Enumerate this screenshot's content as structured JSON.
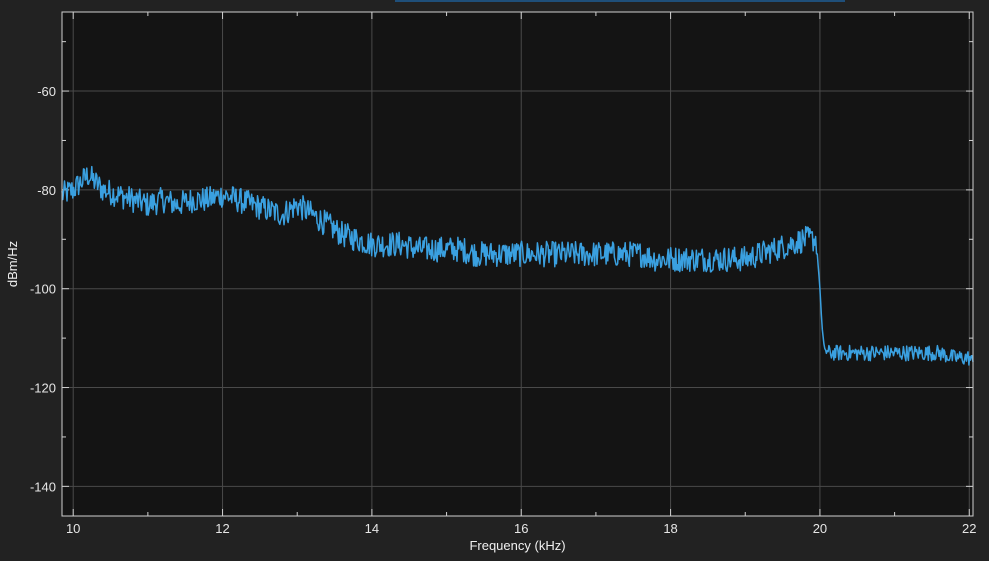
{
  "chart_data": {
    "type": "line",
    "xlabel": "Frequency (kHz)",
    "ylabel": "dBm/Hz",
    "xlim": [
      9.85,
      22.05
    ],
    "ylim": [
      -146,
      -44
    ],
    "x_ticks": [
      10,
      12,
      14,
      16,
      18,
      20,
      22
    ],
    "x_minor_ticks": [
      11,
      13,
      15,
      17,
      19,
      21
    ],
    "y_ticks": [
      -60,
      -80,
      -100,
      -120,
      -140
    ],
    "y_minor_ticks": [
      -50,
      -70,
      -90,
      -110,
      -130
    ],
    "grid": true,
    "series": [
      {
        "color": "#3aa0e0",
        "x": [
          9.85,
          10.0,
          10.2,
          10.4,
          10.6,
          10.8,
          11.0,
          11.2,
          11.4,
          11.6,
          11.8,
          12.0,
          12.2,
          12.4,
          12.6,
          12.8,
          13.0,
          13.2,
          13.4,
          13.6,
          13.8,
          14.0,
          14.2,
          14.4,
          14.6,
          14.8,
          15.0,
          15.2,
          15.4,
          15.6,
          15.8,
          16.0,
          16.2,
          16.4,
          16.6,
          16.8,
          17.0,
          17.2,
          17.4,
          17.6,
          17.8,
          18.0,
          18.2,
          18.4,
          18.6,
          18.8,
          19.0,
          19.2,
          19.4,
          19.6,
          19.8,
          19.95,
          20.0,
          20.03,
          20.06,
          20.1,
          20.2,
          20.4,
          20.6,
          20.8,
          21.0,
          21.2,
          21.4,
          21.6,
          21.8,
          22.0,
          22.05
        ],
        "y": [
          -81,
          -80,
          -77,
          -80,
          -81,
          -82,
          -83,
          -82,
          -83,
          -82,
          -82,
          -81,
          -82,
          -83,
          -84,
          -85,
          -83,
          -85,
          -87,
          -89,
          -90,
          -91,
          -91,
          -91,
          -92,
          -92,
          -92,
          -92,
          -93,
          -93,
          -93,
          -93,
          -93,
          -93,
          -93,
          -93,
          -93,
          -93,
          -93,
          -93,
          -94,
          -94,
          -94,
          -94,
          -94,
          -94,
          -94,
          -93,
          -92,
          -91,
          -90,
          -90,
          -100,
          -108,
          -112,
          -113,
          -113,
          -113,
          -113,
          -113,
          -113,
          -113,
          -113,
          -113,
          -114,
          -114,
          -115
        ]
      }
    ]
  }
}
